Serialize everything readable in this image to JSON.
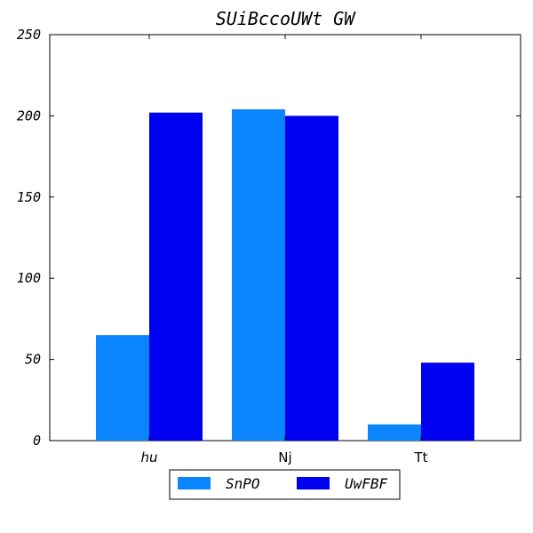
{
  "chart_data": {
    "type": "bar",
    "title": "SUiBccoUWt GW",
    "xlabel": "",
    "ylabel": "",
    "categories": [
      "hu",
      "Nj",
      "Tt"
    ],
    "ylim": [
      0,
      250
    ],
    "yticks": [
      0,
      50,
      100,
      150,
      200,
      250
    ],
    "series": [
      {
        "name": "SnPO",
        "values": [
          65,
          204,
          10
        ],
        "color": "#0a84ff"
      },
      {
        "name": "UwFBF",
        "values": [
          202,
          200,
          48
        ],
        "color": "#0000f0"
      }
    ],
    "legend_position": "bottom-center",
    "grid": false
  }
}
